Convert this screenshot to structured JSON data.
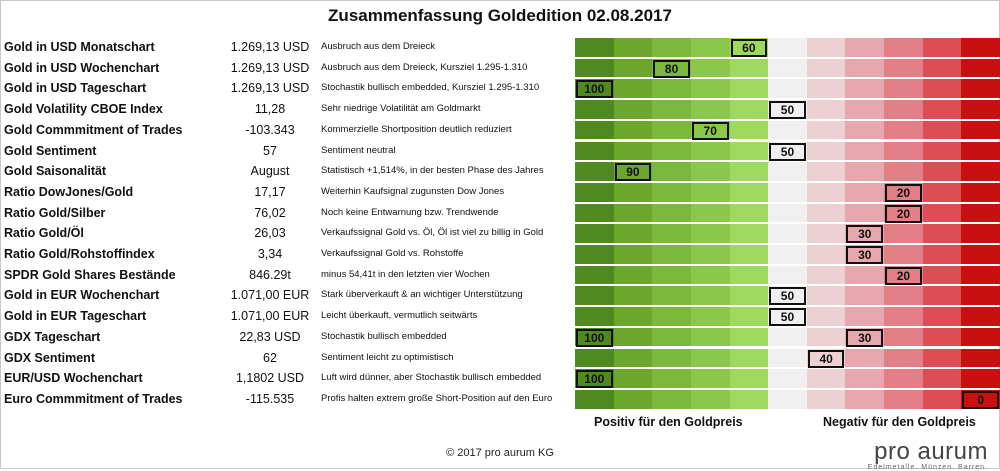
{
  "title": "Zusammenfassung Goldedition 02.08.2017",
  "footer": {
    "positive_label": "Positiv für den Goldpreis",
    "negative_label": "Negativ für den Goldpreis",
    "copyright": "© 2017 pro aurum KG"
  },
  "logo": {
    "name": "pro aurum",
    "tagline": "Edelmetalle. Münzen. Barren."
  },
  "colors": {
    "scale": [
      "#4f8a20",
      "#6ca62d",
      "#7cb83b",
      "#8bc74a",
      "#9fd85f",
      "#f0f0f0",
      "#ecd0d3",
      "#e6a8ae",
      "#e27e86",
      "#dc4d56",
      "#c91010"
    ]
  },
  "chart_data": {
    "type": "table",
    "title": "Zusammenfassung Goldedition 02.08.2017",
    "scale": [
      100,
      90,
      80,
      70,
      60,
      50,
      40,
      30,
      20,
      10,
      0
    ],
    "rows": [
      {
        "label": "Gold in USD Monatschart",
        "value": "1.269,13 USD",
        "comment": "Ausbruch aus dem Dreieck",
        "score": 60
      },
      {
        "label": "Gold in USD Wochenchart",
        "value": "1.269,13 USD",
        "comment": "Ausbruch aus dem Dreieck, Kursziel 1.295-1.310",
        "score": 80
      },
      {
        "label": "Gold in USD Tageschart",
        "value": "1.269,13 USD",
        "comment": "Stochastik bullisch embedded, Kursziel 1.295-1.310",
        "score": 100
      },
      {
        "label": "Gold Volatility CBOE Index",
        "value": "11,28",
        "comment": "Sehr niedrige Volatilität am Goldmarkt",
        "score": 50
      },
      {
        "label": "Gold Commmitment of Trades",
        "value": "-103.343",
        "comment": "Kommerzielle Shortposition deutlich reduziert",
        "score": 70
      },
      {
        "label": "Gold Sentiment",
        "value": "57",
        "comment": "Sentiment neutral",
        "score": 50
      },
      {
        "label": "Gold Saisonalität",
        "value": "August",
        "comment": "Statistisch +1,514%, in der besten Phase des Jahres",
        "score": 90
      },
      {
        "label": "Ratio DowJones/Gold",
        "value": "17,17",
        "comment": "Weiterhin Kaufsignal zugunsten Dow Jones",
        "score": 20
      },
      {
        "label": "Ratio Gold/Silber",
        "value": "76,02",
        "comment": "Noch keine Entwarnung bzw. Trendwende",
        "score": 20
      },
      {
        "label": "Ratio Gold/Öl",
        "value": "26,03",
        "comment": "Verkaufssignal Gold vs. Öl, Öl ist viel zu billig in Gold",
        "score": 30
      },
      {
        "label": "Ratio Gold/Rohstoffindex",
        "value": "3,34",
        "comment": "Verkaufssignal Gold vs. Rohstoffe",
        "score": 30
      },
      {
        "label": "SPDR Gold Shares Bestände",
        "value": "846.29t",
        "comment": "minus 54,41t in den letzten vier Wochen",
        "score": 20
      },
      {
        "label": "Gold in EUR Wochenchart",
        "value": "1.071,00 EUR",
        "comment": "Stark überverkauft & an wichtiger Unterstützung",
        "score": 50
      },
      {
        "label": "Gold in EUR Tageschart",
        "value": "1.071,00 EUR",
        "comment": "Leicht überkauft, vermutlich seitwärts",
        "score": 50
      },
      {
        "label": "GDX Tageschart",
        "value": "22,83 USD",
        "comment": "Stochastik bullisch embedded",
        "score": [
          100,
          30
        ]
      },
      {
        "label": "GDX Sentiment",
        "value": "62",
        "comment": "Sentiment leicht zu optimistisch",
        "score": 40
      },
      {
        "label": "EUR/USD Wochenchart",
        "value": "1,1802 USD",
        "comment": "Luft wird dünner, aber Stochastik bullisch embedded",
        "score": 100
      },
      {
        "label": "Euro Commmitment of Trades",
        "value": "-115.535",
        "comment": "Profis halten extrem große Short-Position auf den Euro",
        "score": 0
      }
    ]
  }
}
